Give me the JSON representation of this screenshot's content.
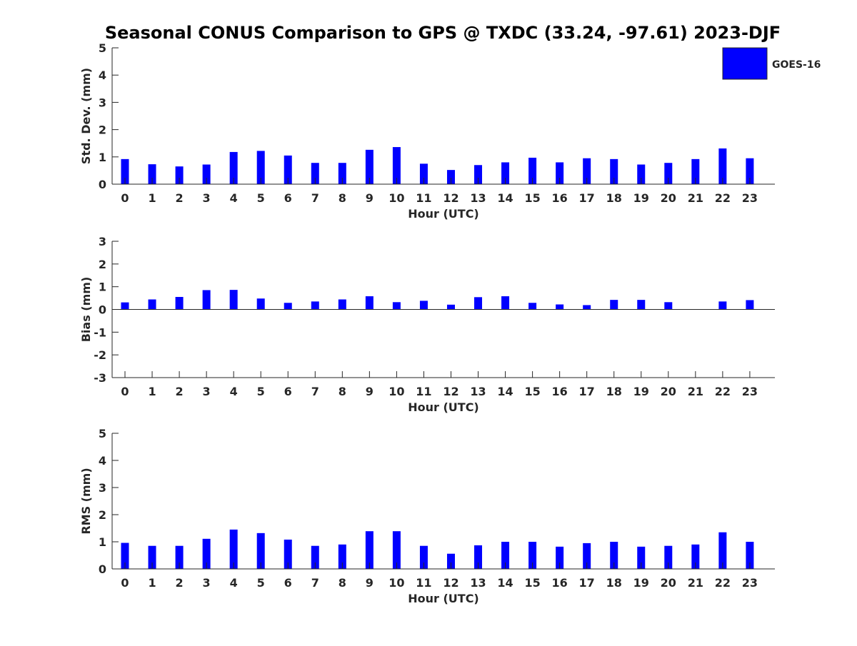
{
  "chart_data": {
    "type": "bar",
    "title": "Seasonal CONUS Comparison to GPS @ TXDC (33.24, -97.61) 2023-DJF",
    "legend": {
      "label": "GOES-16",
      "placement": "top-right",
      "color": "#0000ff"
    },
    "bar_color": "#0000ff",
    "grid": false,
    "categories": [
      "0",
      "1",
      "2",
      "3",
      "4",
      "5",
      "6",
      "7",
      "8",
      "9",
      "10",
      "11",
      "12",
      "13",
      "14",
      "15",
      "16",
      "17",
      "18",
      "19",
      "20",
      "21",
      "22",
      "23"
    ],
    "panels": [
      {
        "ylabel": "Std. Dev. (mm)",
        "xlabel": "Hour (UTC)",
        "ylim": [
          0,
          5
        ],
        "yticks": [
          "0",
          "1",
          "2",
          "3",
          "4",
          "5"
        ],
        "series": [
          {
            "name": "GOES-16",
            "values": [
              0.92,
              0.73,
              0.65,
              0.72,
              1.18,
              1.22,
              1.05,
              0.78,
              0.78,
              1.26,
              1.36,
              0.75,
              0.52,
              0.7,
              0.8,
              0.97,
              0.8,
              0.95,
              0.92,
              0.72,
              0.78,
              0.92,
              1.31,
              0.95
            ]
          }
        ]
      },
      {
        "ylabel": "Bias (mm)",
        "xlabel": "Hour (UTC)",
        "ylim": [
          -3,
          3
        ],
        "yticks": [
          "-3",
          "-2",
          "-1",
          "0",
          "1",
          "2",
          "3"
        ],
        "series": [
          {
            "name": "GOES-16",
            "values": [
              0.31,
              0.44,
              0.55,
              0.85,
              0.86,
              0.48,
              0.29,
              0.35,
              0.44,
              0.58,
              0.32,
              0.38,
              0.21,
              0.54,
              0.58,
              0.29,
              0.22,
              0.19,
              0.42,
              0.42,
              0.32,
              0.0,
              0.35,
              0.41
            ]
          }
        ]
      },
      {
        "ylabel": "RMS (mm)",
        "xlabel": "Hour (UTC)",
        "ylim": [
          0,
          5
        ],
        "yticks": [
          "0",
          "1",
          "2",
          "3",
          "4",
          "5"
        ],
        "series": [
          {
            "name": "GOES-16",
            "values": [
              0.96,
              0.85,
              0.85,
              1.11,
              1.45,
              1.32,
              1.08,
              0.85,
              0.9,
              1.39,
              1.39,
              0.85,
              0.56,
              0.87,
              1.0,
              1.0,
              0.82,
              0.95,
              1.0,
              0.82,
              0.85,
              0.9,
              1.35,
              1.0
            ]
          }
        ]
      }
    ]
  }
}
